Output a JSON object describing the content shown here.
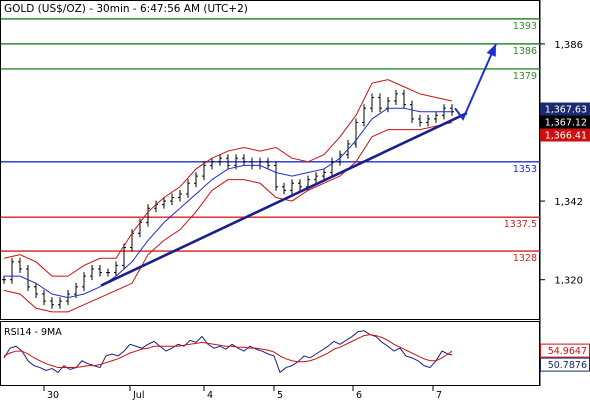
{
  "chart_data": [
    {
      "type": "line",
      "title": "GOLD (US$/OZ) - 30min - 6:47:56 AM (UTC+2)",
      "ylim": [
        1309,
        1398
      ],
      "y_ticks": [
        {
          "label": "1,386",
          "value": 1386
        },
        {
          "label": "1,342",
          "value": 1342
        },
        {
          "label": "1,320",
          "value": 1320
        }
      ],
      "x_ticks": [
        {
          "label": "30",
          "value": 44
        },
        {
          "label": "Jul",
          "value": 130
        },
        {
          "label": "4",
          "value": 204
        },
        {
          "label": "5",
          "value": 274
        },
        {
          "label": "6",
          "value": 353
        },
        {
          "label": "7",
          "value": 433
        }
      ],
      "levels": [
        {
          "label": "1393",
          "value": 1393,
          "color": "#2e8b2e"
        },
        {
          "label": "1386",
          "value": 1386,
          "color": "#2e8b2e"
        },
        {
          "label": "1379",
          "value": 1379,
          "color": "#2e8b2e"
        },
        {
          "label": "1353",
          "value": 1353,
          "color": "#1f2fd0"
        },
        {
          "label": "1337.5",
          "value": 1337.5,
          "color": "#d42020"
        },
        {
          "label": "1328",
          "value": 1328,
          "color": "#d42020"
        }
      ],
      "trendline": {
        "x": [
          102,
          466
        ],
        "y": [
          1318.5,
          1366.5
        ],
        "color": "#1a1f8a"
      },
      "projection": {
        "x": [
          455,
          463,
          496
        ],
        "y": [
          1368,
          1365,
          1386
        ],
        "color": "#1f2fd0"
      },
      "price_tags": [
        {
          "label": "1,367.63",
          "value": 1367.63,
          "bg": "#1a2a6c",
          "fg": "#ffffff"
        },
        {
          "label": "1,367.12",
          "value": 1367.12,
          "bg": "#000000",
          "fg": "#ffffff"
        },
        {
          "label": "1,366.41",
          "value": 1366.41,
          "bg": "#cc1010",
          "fg": "#ffffff"
        }
      ],
      "series": [
        {
          "name": "Price",
          "style": "ohlc",
          "color": "#000000",
          "x": [
            4,
            12,
            20,
            28,
            36,
            44,
            52,
            60,
            68,
            76,
            84,
            92,
            100,
            108,
            116,
            124,
            132,
            140,
            148,
            156,
            164,
            172,
            180,
            188,
            196,
            204,
            212,
            220,
            228,
            236,
            244,
            252,
            260,
            268,
            276,
            284,
            292,
            300,
            308,
            316,
            324,
            332,
            340,
            348,
            356,
            364,
            372,
            380,
            388,
            396,
            404,
            412,
            420,
            428,
            436,
            444,
            452
          ],
          "y": [
            1320,
            1325,
            1323,
            1318,
            1316,
            1314,
            1313,
            1314,
            1316,
            1318,
            1321,
            1323,
            1322,
            1322,
            1324,
            1329,
            1333,
            1336,
            1340,
            1341,
            1342,
            1343,
            1344,
            1347,
            1349,
            1352,
            1353,
            1354,
            1352,
            1354,
            1353,
            1352,
            1353,
            1352,
            1346,
            1345,
            1347,
            1346,
            1348,
            1349,
            1350,
            1353,
            1355,
            1358,
            1364,
            1368,
            1371,
            1368,
            1370,
            1372,
            1369,
            1365,
            1364,
            1365,
            1366,
            1368,
            1367
          ]
        },
        {
          "name": "Bollinger upper",
          "style": "line",
          "color": "#cc1010",
          "x": [
            4,
            20,
            36,
            52,
            68,
            84,
            100,
            116,
            132,
            148,
            164,
            180,
            196,
            212,
            228,
            244,
            260,
            276,
            292,
            308,
            324,
            340,
            356,
            372,
            388,
            404,
            420,
            436,
            452
          ],
          "y": [
            1326,
            1327,
            1325,
            1321,
            1321,
            1324,
            1326,
            1326,
            1333,
            1339,
            1343,
            1346,
            1351,
            1354,
            1356,
            1357,
            1356,
            1357,
            1354,
            1353,
            1355,
            1360,
            1366,
            1375,
            1376,
            1374,
            1372,
            1371,
            1370
          ]
        },
        {
          "name": "Bollinger lower",
          "style": "line",
          "color": "#cc1010",
          "x": [
            4,
            20,
            36,
            52,
            68,
            84,
            100,
            116,
            132,
            148,
            164,
            180,
            196,
            212,
            228,
            244,
            260,
            276,
            292,
            308,
            324,
            340,
            356,
            372,
            388,
            404,
            420,
            436,
            452
          ],
          "y": [
            1317,
            1316,
            1312,
            1311,
            1311,
            1313,
            1315,
            1317,
            1319,
            1327,
            1331,
            1334,
            1339,
            1345,
            1348,
            1348,
            1347,
            1343,
            1342,
            1345,
            1347,
            1349,
            1353,
            1360,
            1362,
            1362,
            1362,
            1363,
            1364
          ]
        },
        {
          "name": "Moving average",
          "style": "line",
          "color": "#1f2fd0",
          "x": [
            4,
            20,
            36,
            52,
            68,
            84,
            100,
            116,
            132,
            148,
            164,
            180,
            196,
            212,
            228,
            244,
            260,
            276,
            292,
            308,
            324,
            340,
            356,
            372,
            388,
            404,
            420,
            436,
            452
          ],
          "y": [
            1321,
            1321,
            1319,
            1316,
            1315,
            1316,
            1318,
            1321,
            1325,
            1331,
            1336,
            1340,
            1344,
            1348,
            1351,
            1352,
            1352,
            1350,
            1349,
            1350,
            1351,
            1354,
            1359,
            1365,
            1368,
            1368,
            1367,
            1367,
            1367
          ]
        }
      ]
    },
    {
      "type": "line",
      "title": "RSI14 - 9MA",
      "tags": [
        {
          "label": "54.9647",
          "value": 54.9647,
          "bg": "#ffffff",
          "fg": "#cc1010",
          "border": "#cc1010"
        },
        {
          "label": "50.7876",
          "value": 50.7876,
          "bg": "#ffffff",
          "fg": "#1a2a6c",
          "border": "#1a2a6c"
        }
      ],
      "series": [
        {
          "name": "RSI14",
          "style": "line",
          "color": "#1a1f8a",
          "x": [
            4,
            10,
            16,
            22,
            28,
            34,
            40,
            46,
            52,
            58,
            64,
            70,
            76,
            82,
            88,
            94,
            100,
            106,
            112,
            118,
            124,
            130,
            136,
            142,
            148,
            154,
            160,
            166,
            172,
            178,
            184,
            190,
            196,
            202,
            208,
            214,
            220,
            226,
            232,
            238,
            244,
            250,
            256,
            262,
            268,
            274,
            280,
            286,
            292,
            298,
            304,
            310,
            316,
            322,
            328,
            334,
            340,
            346,
            352,
            358,
            364,
            370,
            376,
            382,
            388,
            394,
            400,
            406,
            412,
            418,
            424,
            430,
            436,
            442,
            448,
            452
          ],
          "y": [
            48,
            58,
            60,
            55,
            45,
            40,
            38,
            35,
            37,
            33,
            40,
            36,
            38,
            45,
            42,
            40,
            38,
            50,
            52,
            50,
            55,
            62,
            60,
            58,
            62,
            65,
            60,
            55,
            58,
            62,
            60,
            66,
            64,
            70,
            62,
            58,
            60,
            57,
            62,
            58,
            55,
            60,
            57,
            55,
            52,
            50,
            33,
            38,
            40,
            44,
            50,
            48,
            52,
            56,
            60,
            65,
            62,
            66,
            70,
            75,
            76,
            72,
            70,
            64,
            60,
            55,
            58,
            50,
            48,
            45,
            40,
            38,
            45,
            55,
            52,
            51
          ]
        },
        {
          "name": "9MA",
          "style": "line",
          "color": "#cc1010",
          "x": [
            4,
            10,
            16,
            22,
            28,
            34,
            40,
            46,
            52,
            58,
            64,
            70,
            76,
            82,
            88,
            94,
            100,
            106,
            112,
            118,
            124,
            130,
            136,
            142,
            148,
            154,
            160,
            166,
            172,
            178,
            184,
            190,
            196,
            202,
            208,
            214,
            220,
            226,
            232,
            238,
            244,
            250,
            256,
            262,
            268,
            274,
            280,
            286,
            292,
            298,
            304,
            310,
            316,
            322,
            328,
            334,
            340,
            346,
            352,
            358,
            364,
            370,
            376,
            382,
            388,
            394,
            400,
            406,
            412,
            418,
            424,
            430,
            436,
            442,
            448,
            452
          ],
          "y": [
            50,
            53,
            55,
            55,
            52,
            48,
            45,
            42,
            40,
            38,
            38,
            38,
            38,
            39,
            40,
            40,
            41,
            43,
            45,
            47,
            50,
            53,
            55,
            57,
            58,
            60,
            60,
            60,
            60,
            60,
            61,
            62,
            63,
            64,
            63,
            62,
            61,
            60,
            60,
            59,
            59,
            58,
            58,
            57,
            56,
            54,
            50,
            47,
            45,
            44,
            44,
            45,
            47,
            50,
            53,
            57,
            59,
            62,
            65,
            68,
            71,
            72,
            71,
            69,
            66,
            62,
            59,
            56,
            53,
            50,
            47,
            45,
            45,
            48,
            52,
            55
          ]
        }
      ]
    }
  ]
}
